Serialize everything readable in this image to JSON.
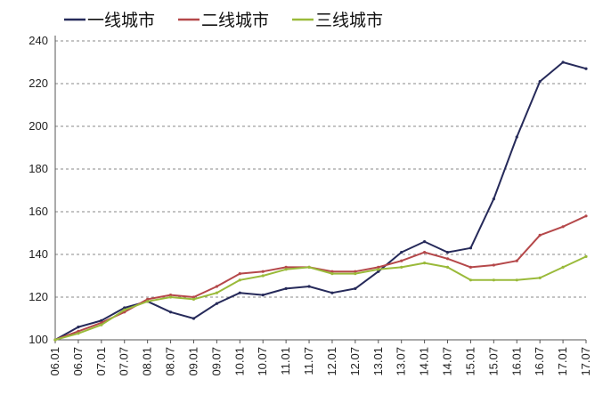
{
  "chart_data": {
    "type": "line",
    "title": "",
    "xlabel": "",
    "ylabel": "",
    "ylim": [
      100,
      240
    ],
    "yticks": [
      100,
      120,
      140,
      160,
      180,
      200,
      220,
      240
    ],
    "grid": "horizontal dashed",
    "legend_position": "top",
    "categories": [
      "06.01",
      "06.07",
      "07.01",
      "07.07",
      "08.01",
      "08.07",
      "09.01",
      "09.07",
      "10.01",
      "10.07",
      "11.01",
      "11.07",
      "12.01",
      "12.07",
      "13.01",
      "13.07",
      "14.01",
      "14.07",
      "15.01",
      "15.07",
      "16.01",
      "16.07",
      "17.01",
      "17.07"
    ],
    "series": [
      {
        "name": "一线城市",
        "color": "#262a5a",
        "values": [
          100,
          106,
          109,
          115,
          118,
          113,
          110,
          117,
          122,
          121,
          124,
          125,
          122,
          124,
          132,
          141,
          146,
          141,
          143,
          166,
          195,
          221,
          230,
          227
        ]
      },
      {
        "name": "二线城市",
        "color": "#b5484a",
        "values": [
          100,
          104,
          108,
          113,
          119,
          121,
          120,
          125,
          131,
          132,
          134,
          134,
          132,
          132,
          134,
          137,
          141,
          138,
          134,
          135,
          137,
          149,
          153,
          158
        ]
      },
      {
        "name": "三线城市",
        "color": "#9aba3a",
        "values": [
          100,
          103,
          107,
          114,
          118,
          120,
          119,
          122,
          128,
          130,
          133,
          134,
          131,
          131,
          133,
          134,
          136,
          134,
          128,
          128,
          128,
          129,
          134,
          139
        ]
      }
    ]
  }
}
